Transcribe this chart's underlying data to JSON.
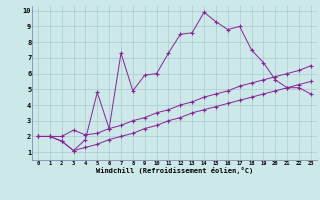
{
  "xlabel": "Windchill (Refroidissement éolien,°C)",
  "bg_color": "#cce8e8",
  "grid_color": "#aacccc",
  "line_color": "#882299",
  "xlim": [
    -0.5,
    23.5
  ],
  "ylim": [
    0.5,
    10.3
  ],
  "xticks": [
    0,
    1,
    2,
    3,
    4,
    5,
    6,
    7,
    8,
    9,
    10,
    11,
    12,
    13,
    14,
    15,
    16,
    17,
    18,
    19,
    20,
    21,
    22,
    23
  ],
  "yticks": [
    1,
    2,
    3,
    4,
    5,
    6,
    7,
    8,
    9,
    10
  ],
  "series": [
    {
      "x": [
        0,
        1,
        2,
        3,
        4,
        5,
        6,
        7,
        8,
        9,
        10,
        11,
        12,
        13,
        14,
        15,
        16,
        17,
        18,
        19,
        20,
        21,
        22,
        23
      ],
      "y": [
        2.0,
        2.0,
        1.7,
        1.1,
        1.8,
        4.8,
        2.5,
        7.3,
        4.9,
        5.9,
        6.0,
        7.3,
        8.5,
        8.6,
        9.9,
        9.3,
        8.8,
        9.0,
        7.5,
        6.7,
        5.6,
        5.1,
        5.1,
        4.7
      ]
    },
    {
      "x": [
        0,
        1,
        2,
        3,
        4,
        5,
        6,
        7,
        8,
        9,
        10,
        11,
        12,
        13,
        14,
        15,
        16,
        17,
        18,
        19,
        20,
        21,
        22,
        23
      ],
      "y": [
        2.0,
        2.0,
        2.0,
        2.4,
        2.1,
        2.2,
        2.5,
        2.7,
        3.0,
        3.2,
        3.5,
        3.7,
        4.0,
        4.2,
        4.5,
        4.7,
        4.9,
        5.2,
        5.4,
        5.6,
        5.8,
        6.0,
        6.2,
        6.5
      ]
    },
    {
      "x": [
        0,
        1,
        2,
        3,
        4,
        5,
        6,
        7,
        8,
        9,
        10,
        11,
        12,
        13,
        14,
        15,
        16,
        17,
        18,
        19,
        20,
        21,
        22,
        23
      ],
      "y": [
        2.0,
        2.0,
        1.7,
        1.1,
        1.3,
        1.5,
        1.8,
        2.0,
        2.2,
        2.5,
        2.7,
        3.0,
        3.2,
        3.5,
        3.7,
        3.9,
        4.1,
        4.3,
        4.5,
        4.7,
        4.9,
        5.1,
        5.3,
        5.5
      ]
    }
  ]
}
